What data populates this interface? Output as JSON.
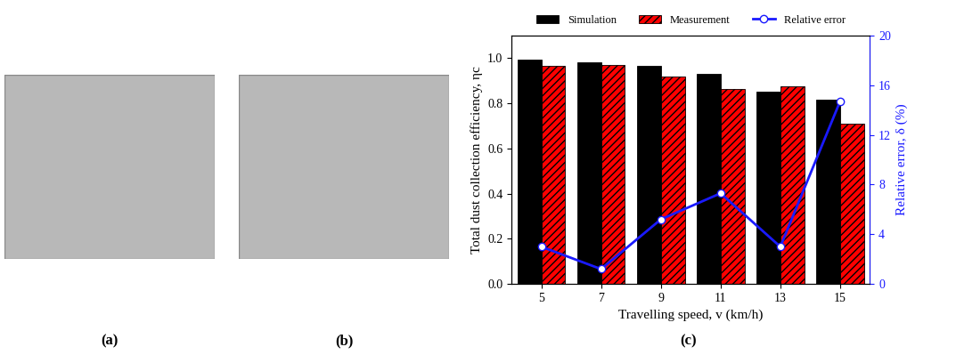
{
  "chart_data": {
    "type": "bar",
    "x_label": "Travelling speed, v (km/h)",
    "y_label": "Total dust collection efficiency, ηc",
    "y2_label": "Relative error, δ (%)",
    "categories": [
      "5",
      "7",
      "9",
      "11",
      "13",
      "15"
    ],
    "series": [
      {
        "name": "Simulation",
        "type": "bar",
        "color": "#000000",
        "values": [
          0.995,
          0.98,
          0.965,
          0.93,
          0.85,
          0.815
        ]
      },
      {
        "name": "Measurement",
        "type": "bar",
        "color": "#ff0000",
        "values": [
          0.965,
          0.97,
          0.92,
          0.865,
          0.875,
          0.71
        ]
      },
      {
        "name": "Relative error",
        "type": "line",
        "axis": "y2",
        "color": "#1a1aff",
        "marker": "o",
        "line_style": "solid",
        "values": [
          3.0,
          1.2,
          5.2,
          7.3,
          3.0,
          14.7
        ]
      }
    ],
    "ylim": [
      0,
      1.1
    ],
    "yticks": [
      {
        "value": 0,
        "label": "0.0"
      },
      0.2,
      0.4,
      0.6,
      0.8,
      {
        "value": 1,
        "label": "1.0"
      }
    ],
    "y2lim": [
      0,
      20
    ],
    "y2ticks": [
      0,
      4,
      8,
      12,
      16,
      20
    ],
    "legend": "top"
  },
  "panel_labels": [
    "(a)",
    "(b)",
    "(c)"
  ]
}
